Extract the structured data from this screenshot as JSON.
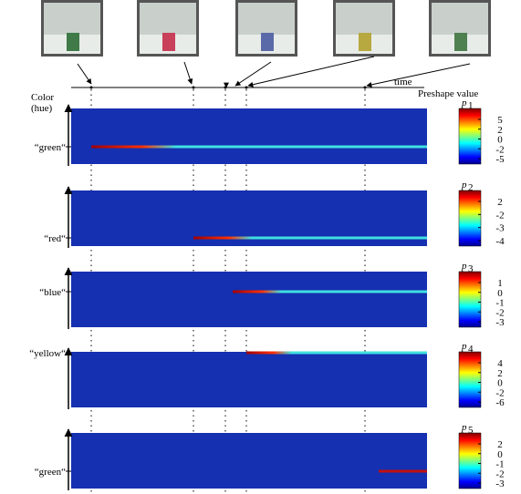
{
  "header": {
    "axis_label_line1": "Color",
    "axis_label_line2": "(hue)",
    "time_label": "time",
    "colorbar_title": "Preshape value"
  },
  "panels": [
    {
      "label": "“green“",
      "param": {
        "symbol": "p",
        "index": "1"
      },
      "ticks": [
        "5",
        "2",
        "0",
        "-2",
        "-5"
      ]
    },
    {
      "label": "“red“",
      "param": {
        "symbol": "p",
        "index": "2"
      },
      "ticks": [
        "2",
        "-2",
        "-3",
        "-4"
      ]
    },
    {
      "label": "“blue“",
      "param": {
        "symbol": "p",
        "index": "3"
      },
      "ticks": [
        "1",
        "0",
        "-1",
        "-2",
        "-3"
      ]
    },
    {
      "label": "“yellow“",
      "param": {
        "symbol": "p",
        "index": "4"
      },
      "ticks": [
        "4",
        "2",
        "0",
        "-2",
        "-6"
      ]
    },
    {
      "label": "“green“",
      "param": {
        "symbol": "p",
        "index": "5"
      },
      "ticks": [
        "2",
        "0",
        "-1",
        "-2",
        "-3"
      ]
    }
  ]
}
